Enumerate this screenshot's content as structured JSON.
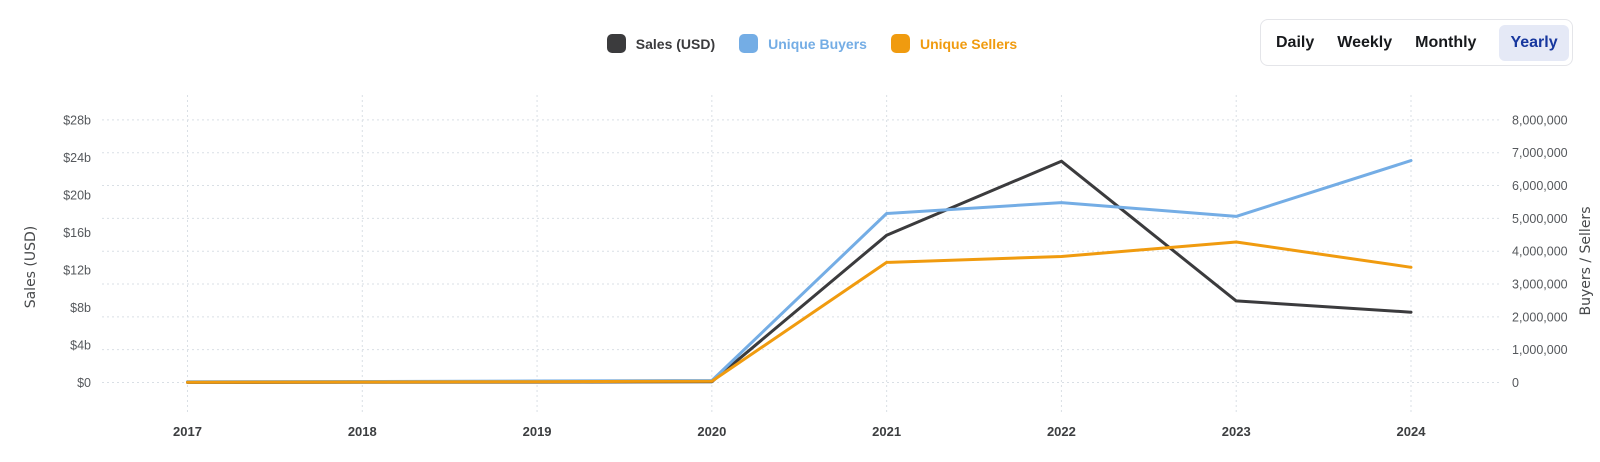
{
  "legend": {
    "items": [
      {
        "label": "Sales (USD)",
        "color": "#3b3b3d"
      },
      {
        "label": "Unique Buyers",
        "color": "#74ade5"
      },
      {
        "label": "Unique Sellers",
        "color": "#f09b0f"
      }
    ]
  },
  "controls": {
    "options": [
      "Daily",
      "Weekly",
      "Monthly",
      "Yearly"
    ],
    "selected": "Yearly",
    "selected_color": "#17379e",
    "selected_bg": "#e5e9f6"
  },
  "chart_data": {
    "type": "line",
    "x_categories": [
      "2017",
      "2018",
      "2019",
      "2020",
      "2021",
      "2022",
      "2023",
      "2024"
    ],
    "series": [
      {
        "name": "Sales (USD)",
        "axis": "left",
        "color": "#3b3b3d",
        "values": [
          0.01,
          0.02,
          0.04,
          0.08,
          15.7,
          23.6,
          8.7,
          7.5
        ]
      },
      {
        "name": "Unique Buyers",
        "axis": "right",
        "color": "#74ade5",
        "values": [
          20000,
          30000,
          45000,
          60000,
          5150000,
          5480000,
          5060000,
          6760000
        ]
      },
      {
        "name": "Unique Sellers",
        "axis": "right",
        "color": "#f09b0f",
        "values": [
          8000,
          15000,
          25000,
          40000,
          3660000,
          3840000,
          4280000,
          3510000
        ]
      }
    ],
    "left_axis": {
      "title": "Sales (USD)",
      "tick_labels": [
        "$0",
        "$4b",
        "$8b",
        "$12b",
        "$16b",
        "$20b",
        "$24b",
        "$28b"
      ],
      "min": 0,
      "max": 28
    },
    "right_axis": {
      "title": "Buyers / Sellers",
      "tick_labels": [
        "0",
        "1,000,000",
        "2,000,000",
        "3,000,000",
        "4,000,000",
        "5,000,000",
        "6,000,000",
        "7,000,000",
        "8,000,000"
      ],
      "min": 0,
      "max": 8000000
    },
    "grid": {
      "color": "#d9dfe5",
      "style": "dotted"
    },
    "legend_position": "top-center"
  }
}
